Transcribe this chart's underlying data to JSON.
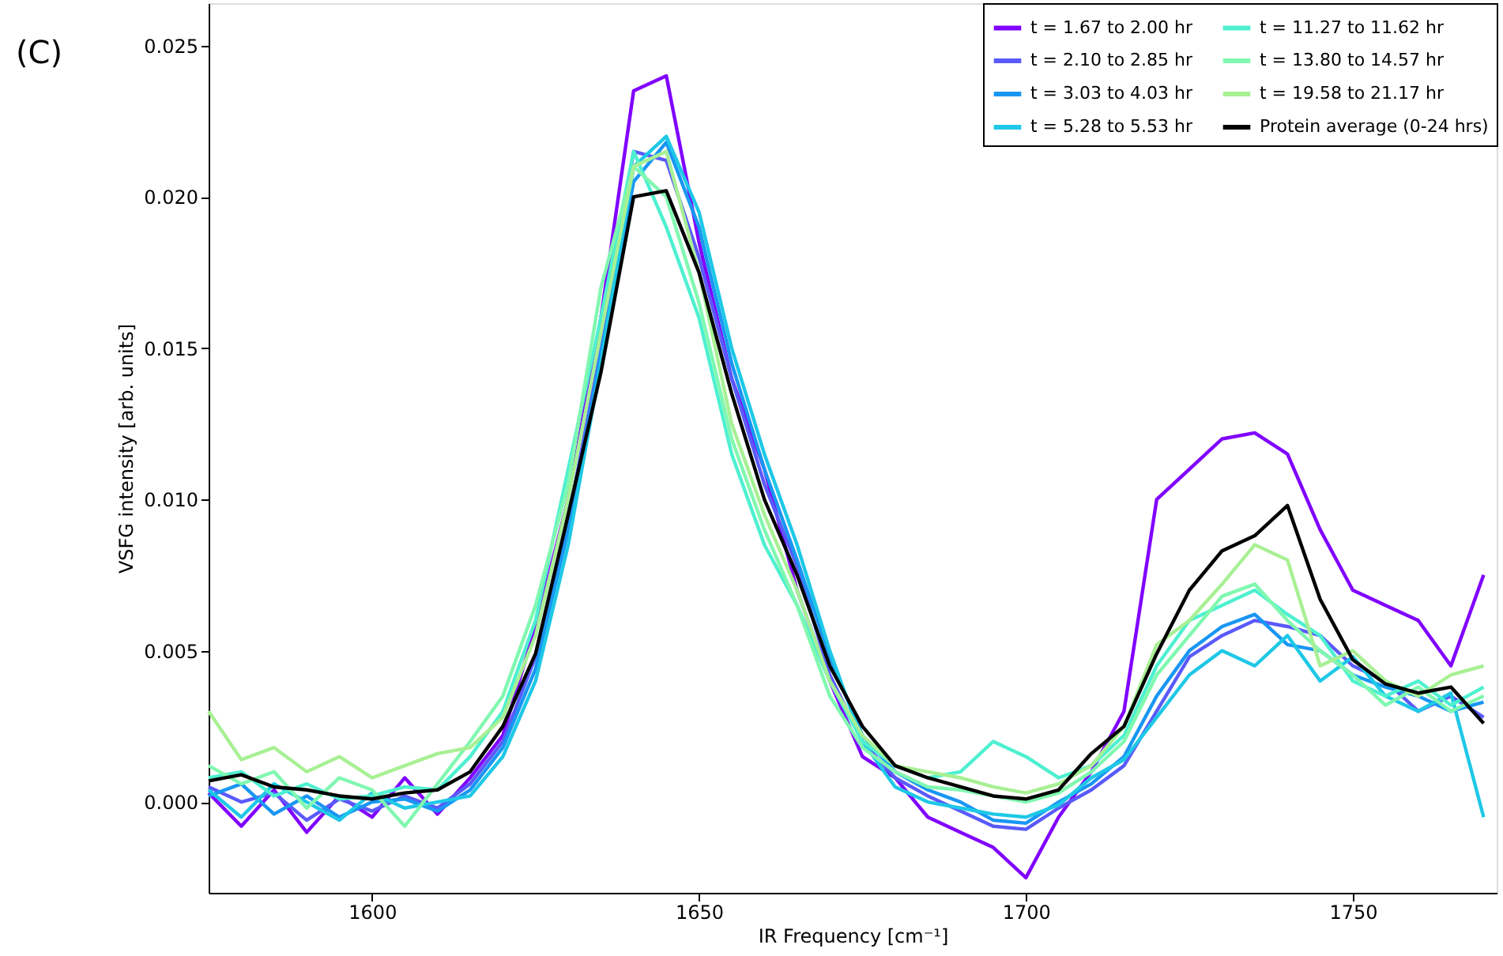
{
  "chart_data": {
    "type": "line",
    "xlabel": "IR Frequency [cm⁻¹]",
    "ylabel": "VSFG intensity [arb. units]",
    "annotations": [
      "(C)"
    ],
    "x": [
      1575,
      1580,
      1585,
      1590,
      1595,
      1600,
      1605,
      1610,
      1615,
      1620,
      1625,
      1630,
      1635,
      1640,
      1645,
      1650,
      1655,
      1660,
      1665,
      1670,
      1675,
      1680,
      1685,
      1690,
      1695,
      1700,
      1705,
      1710,
      1715,
      1720,
      1725,
      1730,
      1735,
      1740,
      1745,
      1750,
      1755,
      1760,
      1765,
      1770
    ],
    "xlim": [
      1575,
      1772
    ],
    "xticks": [
      1600,
      1650,
      1700,
      1750
    ],
    "ylim": [
      -0.003,
      0.0264
    ],
    "yticks": [
      {
        "value": 0,
        "label": "0.000"
      },
      {
        "value": 0.005,
        "label": "0.005"
      },
      {
        "value": 0.01,
        "label": "0.010"
      },
      {
        "value": 0.015,
        "label": "0.015"
      },
      {
        "value": 0.02,
        "label": "0.020"
      },
      {
        "value": 0.025,
        "label": "0.025"
      }
    ],
    "grid": false,
    "legend": "top right",
    "line_style": "solid",
    "marker": "none",
    "series": [
      {
        "name": "t = 1.67 to 2.00 hr",
        "color": "#8000ff",
        "values": [
          0.0003,
          -0.0008,
          0.0004,
          -0.001,
          0.0002,
          -0.0005,
          0.0008,
          -0.0004,
          0.0008,
          0.0022,
          0.0058,
          0.01,
          0.016,
          0.0235,
          0.024,
          0.0185,
          0.014,
          0.011,
          0.007,
          0.004,
          0.0015,
          0.0008,
          -0.0005,
          -0.001,
          -0.0015,
          -0.0025,
          -0.0005,
          0.001,
          0.003,
          0.01,
          0.011,
          0.012,
          0.0122,
          0.0115,
          0.009,
          0.007,
          0.0065,
          0.006,
          0.0045,
          0.0075
        ]
      },
      {
        "name": "t = 2.10 to 2.85 hr",
        "color": "#5a5afb",
        "values": [
          0.0005,
          0.0,
          0.0003,
          -0.0006,
          0.0001,
          -0.0003,
          0.0002,
          -0.0002,
          0.0006,
          0.002,
          0.0048,
          0.0093,
          0.015,
          0.0215,
          0.0212,
          0.018,
          0.014,
          0.0105,
          0.0078,
          0.0042,
          0.002,
          0.0008,
          0.0002,
          -0.0003,
          -0.0008,
          -0.0009,
          -0.0002,
          0.0004,
          0.0012,
          0.003,
          0.0048,
          0.0055,
          0.006,
          0.0058,
          0.0055,
          0.0045,
          0.004,
          0.003,
          0.0035,
          0.0028
        ]
      },
      {
        "name": "t = 3.03 to 4.03 hr",
        "color": "#1996f3",
        "values": [
          0.0002,
          0.0006,
          -0.0004,
          0.0002,
          -0.0005,
          0.0,
          0.0001,
          -0.0003,
          0.0004,
          0.0018,
          0.0044,
          0.009,
          0.0148,
          0.0205,
          0.0218,
          0.019,
          0.0145,
          0.011,
          0.008,
          0.0048,
          0.0022,
          0.001,
          0.0004,
          0.0,
          -0.0006,
          -0.0007,
          0.0,
          0.0006,
          0.0015,
          0.0035,
          0.005,
          0.0058,
          0.0062,
          0.0052,
          0.005,
          0.0042,
          0.0038,
          0.0035,
          0.003,
          0.0033
        ]
      },
      {
        "name": "t = 5.28 to 5.53 hr",
        "color": "#1ec8e6",
        "values": [
          0.0004,
          -0.0005,
          0.0006,
          0.0,
          -0.0006,
          0.0003,
          -0.0002,
          0.0,
          0.0002,
          0.0015,
          0.004,
          0.0085,
          0.0145,
          0.021,
          0.022,
          0.0195,
          0.015,
          0.0115,
          0.0085,
          0.005,
          0.002,
          0.0005,
          0.0,
          -0.0002,
          -0.0004,
          -0.0005,
          -0.0001,
          0.0008,
          0.0014,
          0.0028,
          0.0042,
          0.005,
          0.0045,
          0.0055,
          0.004,
          0.0048,
          0.0035,
          0.003,
          0.0036,
          -0.0005
        ]
      },
      {
        "name": "t = 11.27 to 11.62 hr",
        "color": "#4df0d0",
        "values": [
          0.0008,
          0.001,
          0.0002,
          0.0006,
          0.0001,
          0.0002,
          0.0005,
          0.0004,
          0.0015,
          0.003,
          0.006,
          0.011,
          0.016,
          0.0215,
          0.019,
          0.016,
          0.0115,
          0.0085,
          0.0065,
          0.004,
          0.002,
          0.0012,
          0.0008,
          0.001,
          0.002,
          0.0015,
          0.0008,
          0.0012,
          0.0022,
          0.0045,
          0.006,
          0.0065,
          0.007,
          0.0062,
          0.0055,
          0.004,
          0.0035,
          0.004,
          0.0032,
          0.0038
        ]
      },
      {
        "name": "t = 13.80 to 14.57 hr",
        "color": "#80f8b0",
        "values": [
          0.0012,
          0.0006,
          0.001,
          -0.0002,
          0.0008,
          0.0004,
          -0.0008,
          0.0006,
          0.002,
          0.0035,
          0.0065,
          0.0105,
          0.017,
          0.021,
          0.02,
          0.0165,
          0.012,
          0.009,
          0.0065,
          0.0035,
          0.0018,
          0.001,
          0.0005,
          0.0004,
          0.0002,
          0.0,
          0.0003,
          0.001,
          0.002,
          0.0042,
          0.0055,
          0.0068,
          0.0072,
          0.006,
          0.005,
          0.0042,
          0.0032,
          0.0038,
          0.003,
          0.0035
        ]
      },
      {
        "name": "t = 19.58 to 21.17 hr",
        "color": "#a8f094",
        "values": [
          0.003,
          0.0014,
          0.0018,
          0.001,
          0.0015,
          0.0008,
          0.0012,
          0.0016,
          0.0018,
          0.0028,
          0.0055,
          0.01,
          0.0155,
          0.021,
          0.0215,
          0.0175,
          0.0125,
          0.0095,
          0.007,
          0.004,
          0.0022,
          0.0012,
          0.001,
          0.0008,
          0.0005,
          0.0003,
          0.0006,
          0.0012,
          0.0025,
          0.0052,
          0.006,
          0.0072,
          0.0085,
          0.008,
          0.0045,
          0.005,
          0.004,
          0.0035,
          0.0042,
          0.0045
        ]
      },
      {
        "name": "Protein average (0-24 hrs)",
        "color": "#000000",
        "values": [
          0.0007,
          0.0009,
          0.0005,
          0.0004,
          0.0002,
          0.0001,
          0.0003,
          0.0004,
          0.001,
          0.0025,
          0.0049,
          0.0095,
          0.0142,
          0.02,
          0.0202,
          0.0175,
          0.0135,
          0.01,
          0.0075,
          0.0045,
          0.0025,
          0.0012,
          0.0008,
          0.0005,
          0.0002,
          0.0001,
          0.0004,
          0.0016,
          0.0025,
          0.0049,
          0.007,
          0.0083,
          0.0088,
          0.0098,
          0.0067,
          0.0047,
          0.0039,
          0.0036,
          0.0038,
          0.0026
        ]
      }
    ]
  }
}
